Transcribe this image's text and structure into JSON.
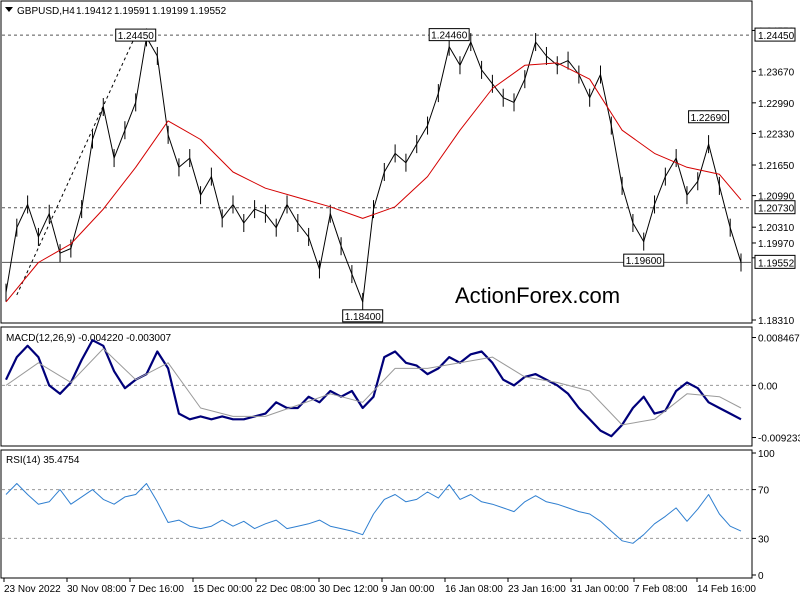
{
  "colors": {
    "price": "#000000",
    "ema": "#d40000",
    "macd": "#00007a",
    "signal": "#9a9a9a",
    "rsi": "#2f7fd0",
    "grid_dash": "#555555",
    "watermark": "#c8c8c8"
  },
  "watermark": "ActionForex.com",
  "chart_data": [
    {
      "panel": "price",
      "type": "line",
      "title": "GBPUSD,H4",
      "ohlc": {
        "open": "1.19412",
        "high": "1.19591",
        "low": "1.19199",
        "close": "1.19552"
      },
      "current_price": "1.19552",
      "ylim": [
        1.1831,
        1.2512
      ],
      "yticks": [
        "1.24550",
        "1.23670",
        "1.22990",
        "1.22330",
        "1.21650",
        "1.20990",
        "1.20310",
        "1.19970",
        "1.19650",
        "1.18310"
      ],
      "horizontal_levels": [
        {
          "value": 1.2445,
          "label": "1.24450"
        },
        {
          "value": 1.2073,
          "label": "1.20730"
        },
        {
          "value": 1.19552,
          "label": "1.19552"
        }
      ],
      "annotations": [
        {
          "label": "1.24450",
          "x": 12,
          "y": 1.2445
        },
        {
          "label": "1.24460",
          "x": 41,
          "y": 1.2446
        },
        {
          "label": "1.18400",
          "x": 33,
          "y": 1.184
        },
        {
          "label": "1.22690",
          "x": 65,
          "y": 1.2269
        },
        {
          "label": "1.19600",
          "x": 59,
          "y": 1.196
        }
      ],
      "trendline": {
        "from": [
          1,
          1.1885
        ],
        "to": [
          12,
          1.2445
        ]
      },
      "series": [
        {
          "role": "price",
          "x": [
            0,
            1,
            2,
            3,
            4,
            5,
            6,
            7,
            8,
            9,
            10,
            11,
            12,
            13,
            14,
            15,
            16,
            17,
            18,
            19,
            20,
            21,
            22,
            23,
            24,
            25,
            26,
            27,
            28,
            29,
            30,
            31,
            32,
            33,
            34,
            35,
            36,
            37,
            38,
            39,
            40,
            41,
            42,
            43,
            44,
            45,
            46,
            47,
            48,
            49,
            50,
            51,
            52,
            53,
            54,
            55,
            56,
            57,
            58,
            59,
            60,
            61,
            62,
            63,
            64,
            65,
            66,
            67,
            68
          ],
          "y": [
            1.189,
            1.203,
            1.208,
            1.201,
            1.206,
            1.1975,
            1.1985,
            1.207,
            1.222,
            1.229,
            1.218,
            1.224,
            1.23,
            1.244,
            1.24,
            1.223,
            1.216,
            1.218,
            1.21,
            1.214,
            1.205,
            1.208,
            1.204,
            1.207,
            1.206,
            1.203,
            1.208,
            1.204,
            1.201,
            1.194,
            1.206,
            1.199,
            1.193,
            1.187,
            1.207,
            1.215,
            1.219,
            1.217,
            1.221,
            1.225,
            1.232,
            1.242,
            1.238,
            1.243,
            1.237,
            1.234,
            1.231,
            1.23,
            1.235,
            1.243,
            1.24,
            1.238,
            1.239,
            1.236,
            1.231,
            1.236,
            1.225,
            1.212,
            1.204,
            1.2,
            1.208,
            1.214,
            1.218,
            1.21,
            1.213,
            1.221,
            1.212,
            1.203,
            1.1955
          ]
        },
        {
          "role": "ema",
          "x": [
            0,
            3,
            6,
            9,
            12,
            15,
            18,
            21,
            24,
            27,
            30,
            33,
            36,
            39,
            42,
            45,
            48,
            51,
            54,
            57,
            60,
            63,
            66,
            68
          ],
          "y": [
            1.187,
            1.1955,
            1.1995,
            1.207,
            1.216,
            1.226,
            1.222,
            1.215,
            1.2115,
            1.2095,
            1.2075,
            1.205,
            1.2075,
            1.214,
            1.224,
            1.233,
            1.238,
            1.2385,
            1.235,
            1.224,
            1.219,
            1.216,
            1.2145,
            1.209
          ]
        }
      ]
    },
    {
      "panel": "macd",
      "type": "line",
      "title": "MACD(12,26,9) -0.004220 -0.003007",
      "ylim": [
        -0.0102,
        0.0098
      ],
      "yticks": [
        "0.008467",
        "0.00",
        "-0.009233"
      ],
      "zero_line": 0,
      "series": [
        {
          "role": "macd",
          "x": [
            0,
            1,
            2,
            3,
            4,
            5,
            6,
            7,
            8,
            9,
            10,
            11,
            12,
            13,
            14,
            15,
            16,
            17,
            18,
            19,
            20,
            21,
            22,
            23,
            24,
            25,
            26,
            27,
            28,
            29,
            30,
            31,
            32,
            33,
            34,
            35,
            36,
            37,
            38,
            39,
            40,
            41,
            42,
            43,
            44,
            45,
            46,
            47,
            48,
            49,
            50,
            51,
            52,
            53,
            54,
            55,
            56,
            57,
            58,
            59,
            60,
            61,
            62,
            63,
            64,
            65,
            66,
            67,
            68
          ],
          "y": [
            0.001,
            0.005,
            0.007,
            0.005,
            0.0,
            -0.0015,
            0.0005,
            0.0045,
            0.008,
            0.007,
            0.0025,
            -0.0005,
            0.001,
            0.002,
            0.006,
            0.003,
            -0.005,
            -0.006,
            -0.0055,
            -0.006,
            -0.0055,
            -0.006,
            -0.006,
            -0.0055,
            -0.005,
            -0.003,
            -0.004,
            -0.004,
            -0.002,
            -0.003,
            -0.001,
            -0.002,
            -0.001,
            -0.004,
            -0.002,
            0.005,
            0.006,
            0.004,
            0.0035,
            0.002,
            0.003,
            0.005,
            0.004,
            0.0055,
            0.006,
            0.004,
            0.001,
            0.0,
            0.0015,
            0.002,
            0.001,
            0.0,
            -0.0015,
            -0.004,
            -0.006,
            -0.008,
            -0.009,
            -0.007,
            -0.004,
            -0.002,
            -0.005,
            -0.0045,
            -0.001,
            0.0005,
            -0.0005,
            -0.003,
            -0.004,
            -0.005,
            -0.006
          ]
        },
        {
          "role": "signal",
          "x": [
            0,
            3,
            6,
            9,
            12,
            15,
            18,
            21,
            24,
            27,
            30,
            33,
            36,
            39,
            42,
            45,
            48,
            51,
            54,
            57,
            60,
            63,
            66,
            68
          ],
          "y": [
            0.0,
            0.004,
            0.0005,
            0.0065,
            0.001,
            0.004,
            -0.004,
            -0.0055,
            -0.0055,
            -0.0035,
            -0.0015,
            -0.003,
            0.003,
            0.003,
            0.004,
            0.005,
            0.0015,
            0.0005,
            -0.001,
            -0.007,
            -0.006,
            -0.0015,
            -0.002,
            -0.004
          ]
        }
      ]
    },
    {
      "panel": "rsi",
      "type": "line",
      "title": "RSI(14) 35.4754",
      "ylim": [
        0,
        100
      ],
      "yticks": [
        "100",
        "70",
        "30",
        "0"
      ],
      "levels": [
        70,
        30
      ],
      "series": [
        {
          "role": "rsi",
          "x": [
            0,
            1,
            2,
            3,
            4,
            5,
            6,
            7,
            8,
            9,
            10,
            11,
            12,
            13,
            14,
            15,
            16,
            17,
            18,
            19,
            20,
            21,
            22,
            23,
            24,
            25,
            26,
            27,
            28,
            29,
            30,
            31,
            32,
            33,
            34,
            35,
            36,
            37,
            38,
            39,
            40,
            41,
            42,
            43,
            44,
            45,
            46,
            47,
            48,
            49,
            50,
            51,
            52,
            53,
            54,
            55,
            56,
            57,
            58,
            59,
            60,
            61,
            62,
            63,
            64,
            65,
            66,
            67,
            68
          ],
          "y": [
            66,
            75,
            66,
            58,
            60,
            70,
            58,
            64,
            70,
            62,
            58,
            64,
            66,
            75,
            60,
            43,
            45,
            40,
            38,
            40,
            45,
            40,
            44,
            38,
            42,
            45,
            38,
            40,
            42,
            45,
            40,
            38,
            36,
            33,
            50,
            62,
            66,
            60,
            62,
            68,
            63,
            74,
            62,
            66,
            60,
            58,
            55,
            52,
            60,
            65,
            60,
            58,
            55,
            52,
            50,
            44,
            36,
            28,
            26,
            33,
            42,
            48,
            55,
            44,
            54,
            66,
            50,
            40,
            36
          ]
        }
      ]
    }
  ],
  "x_axis": {
    "labels": [
      "23 Nov 2022",
      "30 Nov 08:00",
      "7 Dec 16:00",
      "15 Dec 00:00",
      "22 Dec 08:00",
      "30 Dec 12:00",
      "9 Jan 00:00",
      "16 Jan 08:00",
      "23 Jan 16:00",
      "31 Jan 00:00",
      "7 Feb 08:00",
      "14 Feb 16:00"
    ]
  }
}
